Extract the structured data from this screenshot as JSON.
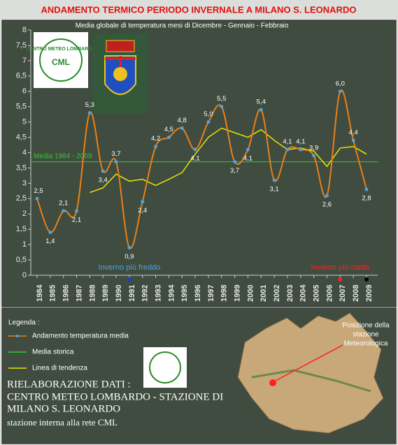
{
  "chart_data": {
    "type": "line",
    "title": "ANDAMENTO TERMICO PERIODO INVERNALE A MILANO S. LEONARDO",
    "subtitle": "Media globale di temperatura mesi di Dicembre - Gennaio - Febbraio",
    "categories": [
      "1984",
      "1985",
      "1986",
      "1987",
      "1988",
      "1989",
      "1990",
      "1991",
      "1992",
      "1993",
      "1994",
      "1995",
      "1996",
      "1997",
      "1998",
      "1999",
      "2000",
      "2001",
      "2002",
      "2003",
      "2004",
      "2005",
      "2006",
      "2007",
      "2008",
      "2009"
    ],
    "series": [
      {
        "name": "Andamento temperatura media",
        "color": "#e8801a",
        "marker_color": "#4aa3e0",
        "values": [
          2.5,
          1.4,
          2.1,
          2.1,
          5.3,
          3.4,
          3.7,
          0.9,
          2.4,
          4.2,
          4.5,
          4.8,
          4.1,
          5.0,
          5.5,
          3.7,
          4.1,
          5.4,
          3.1,
          4.1,
          4.1,
          3.9,
          2.6,
          6.0,
          4.4,
          2.8
        ],
        "value_labels": [
          "2,5",
          "1,4",
          "2,1",
          "2,1",
          "5,3",
          "3,4",
          "3,7",
          "0,9",
          "2,4",
          "4,2",
          "4,5",
          "4,8",
          "4,1",
          "5,0",
          "5,5",
          "3,7",
          "4,1",
          "5,4",
          "3,1",
          "4,1",
          "4,1",
          "3,9",
          "2,6",
          "6,0",
          "4,4",
          "2,8"
        ]
      },
      {
        "name": "Linea di tendenza",
        "color": "#e6e600",
        "values": [
          null,
          null,
          null,
          null,
          2.7,
          2.85,
          3.3,
          3.07,
          3.13,
          2.93,
          3.13,
          3.35,
          3.95,
          4.5,
          4.8,
          4.65,
          4.5,
          4.75,
          4.4,
          4.1,
          4.15,
          4.05,
          3.55,
          4.15,
          4.2,
          3.95
        ]
      }
    ],
    "reference_line": {
      "name": "Media storica",
      "label": "Media 1984 - 2009",
      "value": 3.7,
      "color": "#2ecc2e"
    },
    "ylim": [
      0,
      8
    ],
    "yticks": [
      0,
      {
        "value": 0.5,
        "label": "0,5"
      },
      1,
      {
        "value": 1.5,
        "label": "1,5"
      },
      2,
      {
        "value": 2.5,
        "label": "2,5"
      },
      3,
      {
        "value": 3.5,
        "label": "3,5"
      },
      4,
      {
        "value": 4.5,
        "label": "4,5"
      },
      5,
      {
        "value": 5.5,
        "label": "5,5"
      },
      6,
      {
        "value": 6.5,
        "label": "6,5"
      },
      7,
      {
        "value": 7.5,
        "label": "7,5"
      },
      8
    ],
    "annotations": [
      {
        "text": "Inverno più freddo",
        "category": "1991",
        "color": "#4aa3e0"
      },
      {
        "text": "Inverno più caldo",
        "category": "2007",
        "color": "#ff2020"
      }
    ],
    "marked_categories": [
      {
        "category": "1991",
        "color": "#2040c0"
      },
      {
        "category": "2007",
        "color": "#ff2020"
      },
      {
        "category": "2009",
        "color": "#000000"
      }
    ],
    "legend_title": "Legenda :"
  },
  "logo": {
    "text": "CENTRO METEO LOMBARDO",
    "short": "CML"
  },
  "footer": {
    "lines": [
      "RIELABORAZIONE DATI :",
      "CENTRO METEO LOMBARDO - STAZIONE DI",
      "MILANO S. LEONARDO",
      "stazione interna alla rete CML"
    ]
  },
  "map_label": [
    "Posizione della",
    "stazione",
    "Meteorologica"
  ]
}
